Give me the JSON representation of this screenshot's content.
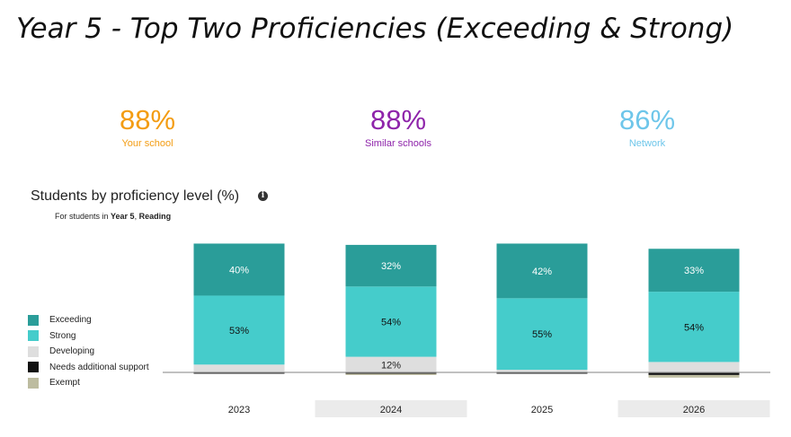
{
  "slide_title": "Year 5 - Top Two Proficiencies (Exceeding & Strong)",
  "kpis": [
    {
      "value": "88%",
      "label": "Your school",
      "color": "#f39c12"
    },
    {
      "value": "88%",
      "label": "Similar schools",
      "color": "#8e24aa"
    },
    {
      "value": "86%",
      "label": "Network",
      "color": "#6ec6ea"
    }
  ],
  "chart": {
    "title": "Students by proficiency level (%)",
    "info_icon": "info-icon",
    "subtitle_prefix": "For students in ",
    "subtitle_year": "Year 5",
    "subtitle_sep": ", ",
    "subtitle_subject": "Reading"
  },
  "chart_data": {
    "type": "bar",
    "stacked": true,
    "categories": [
      "2023",
      "2024",
      "2025",
      "2026"
    ],
    "series": [
      {
        "name": "Exceeding",
        "color": "#2a9d99",
        "values": [
          40,
          32,
          42,
          33
        ],
        "labels": [
          "40%",
          "32%",
          "42%",
          "33%"
        ]
      },
      {
        "name": "Strong",
        "color": "#45cccb",
        "values": [
          53,
          54,
          55,
          54
        ],
        "labels": [
          "53%",
          "54%",
          "55%",
          "54%"
        ]
      },
      {
        "name": "Developing",
        "color": "#dedede",
        "values": [
          6,
          12,
          2,
          8
        ],
        "labels": [
          "",
          "12%",
          "",
          ""
        ]
      },
      {
        "name": "Needs additional support",
        "color": "#111111",
        "values": [
          1,
          1,
          1,
          2
        ],
        "labels": [
          "",
          "",
          "",
          ""
        ]
      },
      {
        "name": "Exempt",
        "color": "#bdbca0",
        "values": [
          0,
          1,
          0,
          2
        ],
        "labels": [
          "",
          "",
          "",
          ""
        ]
      }
    ],
    "legend_position": "left"
  }
}
